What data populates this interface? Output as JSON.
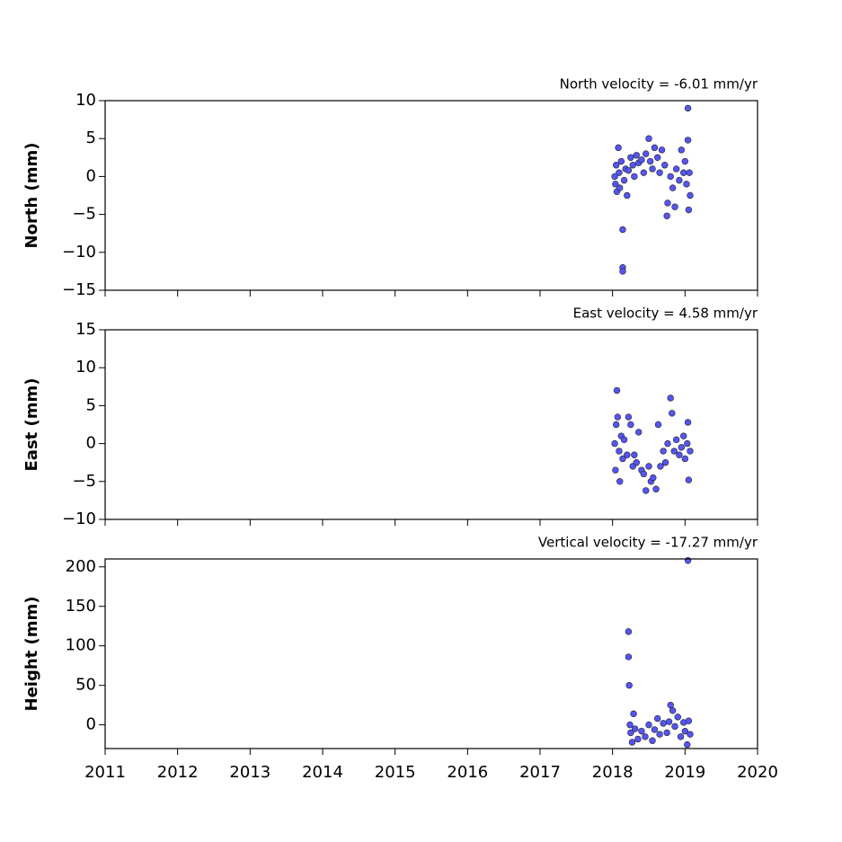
{
  "chart_data": [
    {
      "type": "scatter",
      "title": "North velocity = -6.01 mm/yr",
      "ylabel": "North (mm)",
      "color": "#5555f5",
      "xlim": [
        2011,
        2020
      ],
      "xticks": [
        2011,
        2012,
        2013,
        2014,
        2015,
        2016,
        2017,
        2018,
        2019,
        2020
      ],
      "ylim": [
        -15,
        10
      ],
      "yticks": [
        {
          "value": -15,
          "label": "−15"
        },
        {
          "value": -10,
          "label": "−10"
        },
        {
          "value": -5,
          "label": "−5"
        },
        0,
        5,
        10
      ],
      "x": [
        2018.03,
        2018.04,
        2018.05,
        2018.06,
        2018.08,
        2018.09,
        2018.1,
        2018.12,
        2018.14,
        2018.14,
        2018.14,
        2018.16,
        2018.18,
        2018.2,
        2018.22,
        2018.25,
        2018.28,
        2018.3,
        2018.33,
        2018.36,
        2018.4,
        2018.43,
        2018.46,
        2018.5,
        2018.52,
        2018.55,
        2018.58,
        2018.62,
        2018.65,
        2018.68,
        2018.72,
        2018.75,
        2018.76,
        2018.8,
        2018.83,
        2018.86,
        2018.88,
        2018.92,
        2018.95,
        2018.98,
        2019.0,
        2019.02,
        2019.04,
        2019.04,
        2019.05,
        2019.06,
        2019.07
      ],
      "values": [
        0,
        -1,
        1.5,
        -2,
        3.8,
        0.5,
        -1.5,
        2,
        -7,
        -12,
        -12.5,
        -0.5,
        1,
        -2.5,
        0.8,
        2.5,
        1.5,
        0,
        2.8,
        1.8,
        2.2,
        0.5,
        3,
        5,
        2,
        1,
        3.8,
        2.5,
        0.5,
        3.5,
        1.5,
        -5.2,
        -3.5,
        0,
        -1.5,
        -4,
        1,
        -0.5,
        3.5,
        0.5,
        2,
        -1,
        9,
        4.8,
        -4.4,
        0.5,
        -2.5
      ]
    },
    {
      "type": "scatter",
      "title": "East velocity = 4.58 mm/yr",
      "ylabel": "East (mm)",
      "color": "#5555f5",
      "xlim": [
        2011,
        2020
      ],
      "xticks": [
        2011,
        2012,
        2013,
        2014,
        2015,
        2016,
        2017,
        2018,
        2019,
        2020
      ],
      "ylim": [
        -10,
        15
      ],
      "yticks": [
        {
          "value": -10,
          "label": "−10"
        },
        {
          "value": -5,
          "label": "−5"
        },
        0,
        5,
        10,
        15
      ],
      "x": [
        2018.03,
        2018.04,
        2018.05,
        2018.06,
        2018.07,
        2018.09,
        2018.1,
        2018.12,
        2018.14,
        2018.16,
        2018.2,
        2018.22,
        2018.25,
        2018.28,
        2018.3,
        2018.33,
        2018.36,
        2018.4,
        2018.43,
        2018.46,
        2018.5,
        2018.53,
        2018.56,
        2018.6,
        2018.63,
        2018.66,
        2018.7,
        2018.73,
        2018.76,
        2018.8,
        2018.82,
        2018.85,
        2018.88,
        2018.92,
        2018.95,
        2018.98,
        2019.0,
        2019.03,
        2019.04,
        2019.05,
        2019.07
      ],
      "values": [
        0,
        -3.5,
        2.5,
        7,
        3.5,
        -1,
        -5,
        1,
        -2,
        0.5,
        -1.5,
        3.5,
        2.5,
        -3,
        -1.5,
        -2.5,
        1.5,
        -3.5,
        -4,
        -6.2,
        -3,
        -5,
        -4.5,
        -6,
        2.5,
        -3,
        -1,
        -2.5,
        0,
        6,
        4,
        -1,
        0.5,
        -1.5,
        -0.5,
        1,
        -2,
        0,
        2.8,
        -4.8,
        -1
      ]
    },
    {
      "type": "scatter",
      "title": "Vertical velocity = -17.27 mm/yr",
      "ylabel": "Height (mm)",
      "color": "#5555f5",
      "xlim": [
        2011,
        2020
      ],
      "xticks": [
        2011,
        2012,
        2013,
        2014,
        2015,
        2016,
        2017,
        2018,
        2019,
        2020
      ],
      "ylim": [
        -30,
        210
      ],
      "yticks": [
        0,
        50,
        100,
        150,
        200
      ],
      "x": [
        2018.22,
        2018.22,
        2018.23,
        2018.24,
        2018.25,
        2018.27,
        2018.29,
        2018.31,
        2018.35,
        2018.4,
        2018.45,
        2018.5,
        2018.55,
        2018.58,
        2018.62,
        2018.65,
        2018.7,
        2018.75,
        2018.78,
        2018.8,
        2018.83,
        2018.86,
        2018.9,
        2018.94,
        2018.98,
        2019.0,
        2019.03,
        2019.04,
        2019.05,
        2019.07
      ],
      "values": [
        118,
        86,
        50,
        0,
        -10,
        -22,
        14,
        -5,
        -18,
        -8,
        -15,
        0,
        -20,
        -6,
        8,
        -12,
        2,
        -10,
        4,
        25,
        18,
        -2,
        10,
        -15,
        3,
        -8,
        -25,
        208,
        5,
        -12
      ]
    }
  ]
}
